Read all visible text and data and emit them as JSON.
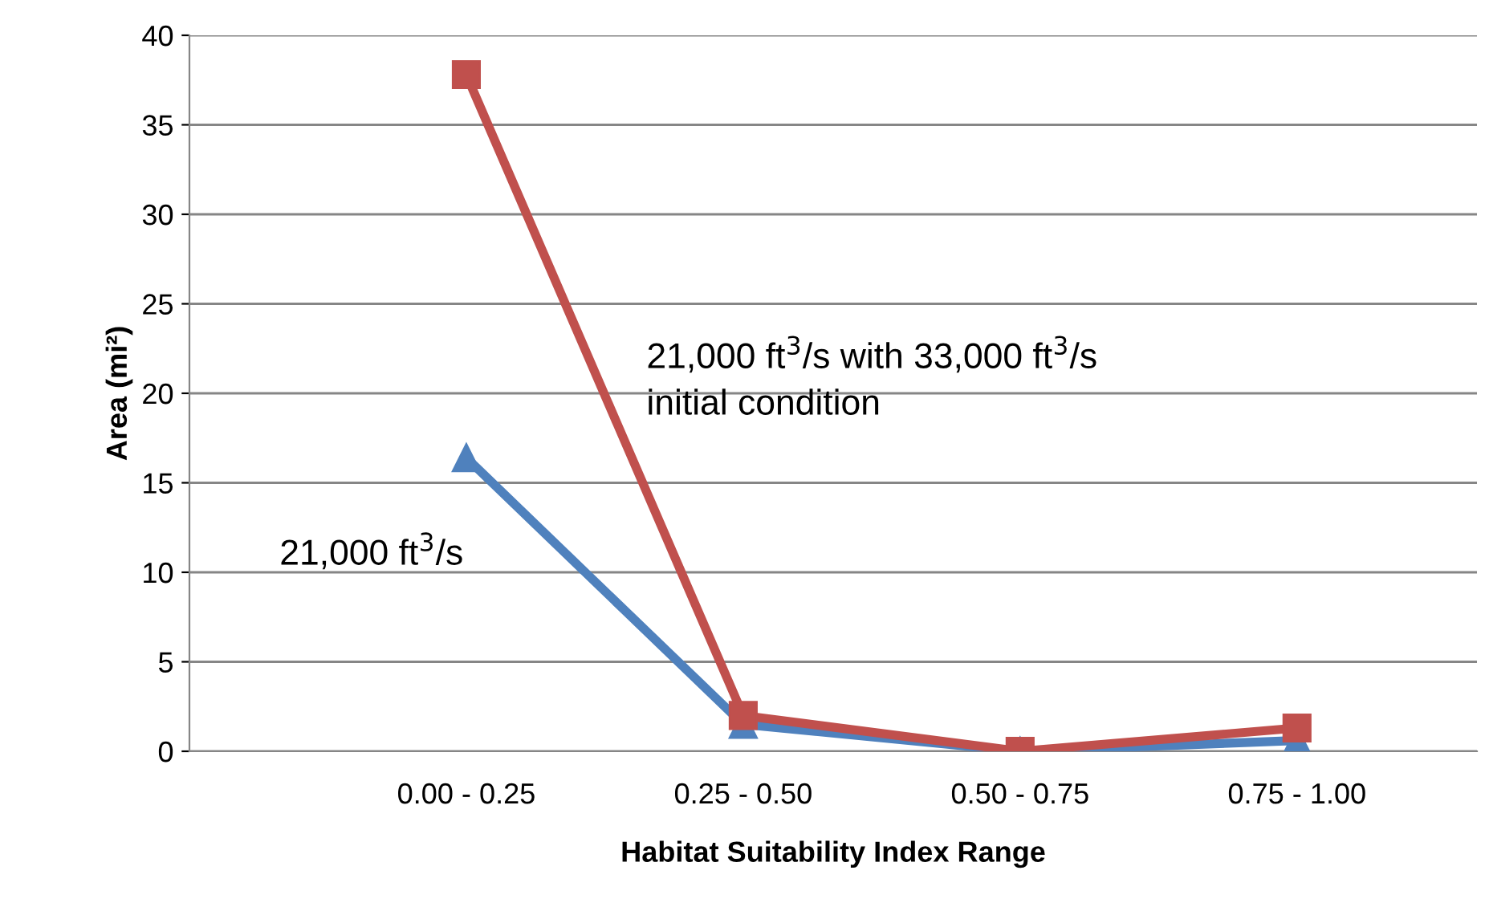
{
  "chart_data": {
    "type": "line",
    "xlabel": "Habitat Suitability Index Range",
    "ylabel": "Area (mi²)",
    "categories": [
      null,
      "0.00 - 0.25",
      "0.25 - 0.50",
      "0.50 - 0.75",
      "0.75 - 1.00"
    ],
    "series": [
      {
        "color": "#4f81bd",
        "marker": "triangle",
        "values": [
          null,
          16.4,
          1.5,
          0.0,
          0.6
        ]
      },
      {
        "color": "#c0504d",
        "marker": "square",
        "values": [
          null,
          37.8,
          2.0,
          0.0,
          1.3
        ]
      }
    ],
    "ylim": [
      0,
      40
    ],
    "yticks": [
      0,
      5,
      10,
      15,
      20,
      25,
      30,
      35,
      40
    ],
    "grid": "y",
    "legend": false,
    "annotations": [
      "21,000 ft$^{3}$/s",
      "21,000 ft$^{3}$/s with 33,000 ft$^{3}$/s\ninitial condition"
    ]
  }
}
